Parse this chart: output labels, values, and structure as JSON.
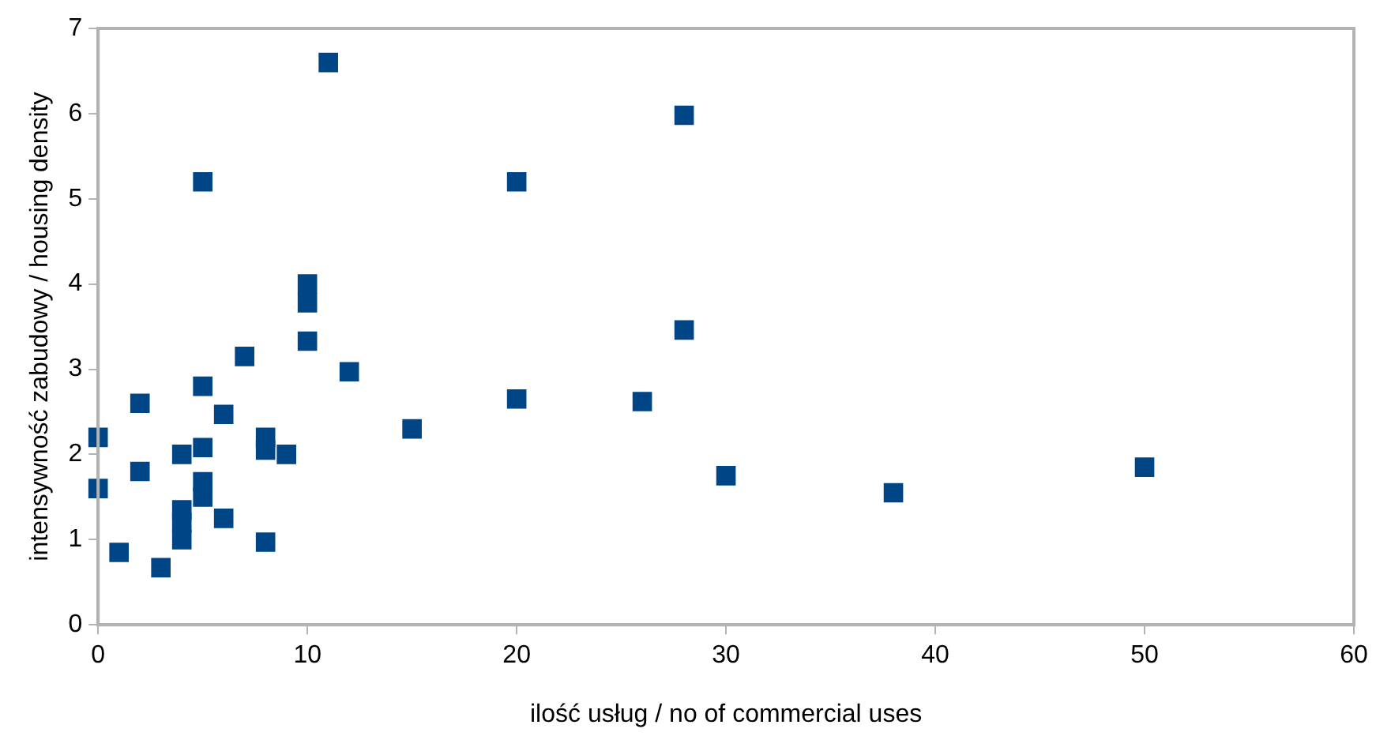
{
  "chart_data": {
    "type": "scatter",
    "xlabel": "ilość usług / no of commercial uses",
    "ylabel": "intensywność zabudowy / housing density",
    "marker": "square",
    "grid": false,
    "legend": false,
    "xlim": [
      0,
      60
    ],
    "xticks": [
      0,
      10,
      20,
      30,
      40,
      50,
      60
    ],
    "ylim": [
      0,
      7
    ],
    "yticks": [
      0,
      1,
      2,
      3,
      4,
      5,
      6,
      7
    ],
    "series": [
      {
        "color": "#004586",
        "x": [
          0,
          0,
          1,
          2,
          2,
          3,
          4,
          4,
          4,
          4,
          5,
          5,
          5,
          5,
          5,
          6,
          6,
          7,
          8,
          8,
          8,
          9,
          10,
          10,
          10,
          11,
          12,
          15,
          20,
          20,
          26,
          28,
          28,
          30,
          38,
          50
        ],
        "values": [
          2.2,
          1.6,
          0.85,
          2.6,
          1.8,
          0.67,
          2.0,
          1.35,
          1.2,
          1.0,
          5.2,
          2.8,
          2.08,
          1.68,
          1.5,
          2.47,
          1.25,
          3.15,
          2.2,
          2.05,
          0.97,
          2.0,
          4.0,
          3.78,
          3.33,
          6.6,
          2.97,
          2.3,
          5.2,
          2.65,
          2.62,
          5.98,
          3.46,
          1.75,
          1.55,
          1.85
        ]
      }
    ]
  }
}
